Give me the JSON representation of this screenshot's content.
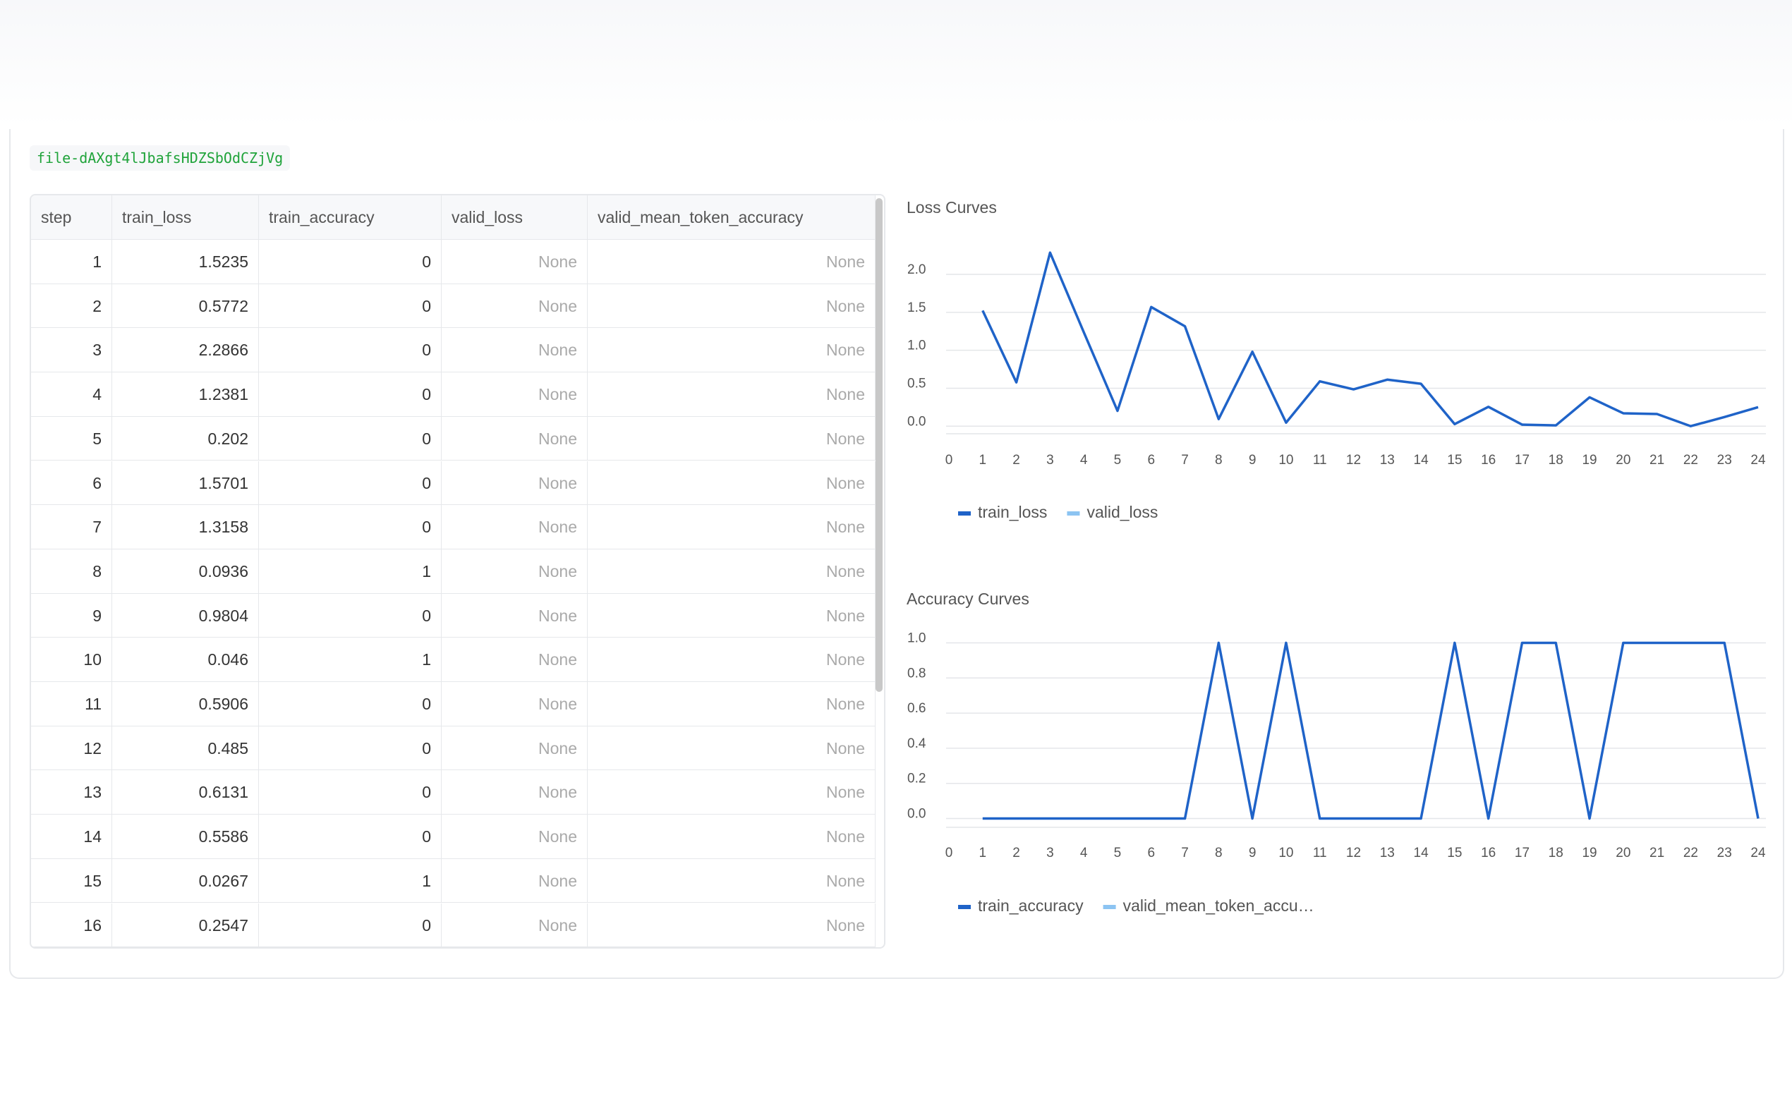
{
  "file_id": "file-dAXgt4lJbafsHDZSbOdCZjVg",
  "table": {
    "columns": [
      "step",
      "train_loss",
      "train_accuracy",
      "valid_loss",
      "valid_mean_token_accuracy"
    ],
    "rows": [
      [
        1,
        1.5235,
        0,
        "None",
        "None"
      ],
      [
        2,
        0.5772,
        0,
        "None",
        "None"
      ],
      [
        3,
        2.2866,
        0,
        "None",
        "None"
      ],
      [
        4,
        1.2381,
        0,
        "None",
        "None"
      ],
      [
        5,
        0.202,
        0,
        "None",
        "None"
      ],
      [
        6,
        1.5701,
        0,
        "None",
        "None"
      ],
      [
        7,
        1.3158,
        0,
        "None",
        "None"
      ],
      [
        8,
        0.0936,
        1,
        "None",
        "None"
      ],
      [
        9,
        0.9804,
        0,
        "None",
        "None"
      ],
      [
        10,
        0.046,
        1,
        "None",
        "None"
      ],
      [
        11,
        0.5906,
        0,
        "None",
        "None"
      ],
      [
        12,
        0.485,
        0,
        "None",
        "None"
      ],
      [
        13,
        0.6131,
        0,
        "None",
        "None"
      ],
      [
        14,
        0.5586,
        0,
        "None",
        "None"
      ],
      [
        15,
        0.0267,
        1,
        "None",
        "None"
      ],
      [
        16,
        0.2547,
        0,
        "None",
        "None"
      ]
    ]
  },
  "chart_data": [
    {
      "type": "line",
      "title": "Loss Curves",
      "x": [
        1,
        2,
        3,
        4,
        5,
        6,
        7,
        8,
        9,
        10,
        11,
        12,
        13,
        14,
        15,
        16,
        17,
        18,
        19,
        20,
        21,
        22,
        23,
        24
      ],
      "series": [
        {
          "name": "train_loss",
          "color": "#1f63c8",
          "values": [
            1.5235,
            0.5772,
            2.2866,
            1.2381,
            0.202,
            1.5701,
            1.3158,
            0.0936,
            0.9804,
            0.046,
            0.5906,
            0.485,
            0.6131,
            0.5586,
            0.0267,
            0.2547,
            0.02,
            0.01,
            0.38,
            0.17,
            0.16,
            0.0,
            0.12,
            0.25
          ]
        },
        {
          "name": "valid_loss",
          "color": "#8cc4f2",
          "values": [
            null,
            null,
            null,
            null,
            null,
            null,
            null,
            null,
            null,
            null,
            null,
            null,
            null,
            null,
            null,
            null,
            null,
            null,
            null,
            null,
            null,
            null,
            null,
            null
          ]
        }
      ],
      "xlim": [
        0,
        24
      ],
      "xticks": [
        0,
        1,
        2,
        3,
        4,
        5,
        6,
        7,
        8,
        9,
        10,
        11,
        12,
        13,
        14,
        15,
        16,
        17,
        18,
        19,
        20,
        21,
        22,
        23,
        24
      ],
      "ylim": [
        -0.1,
        2.4
      ],
      "yticks": [
        {
          "value": 0,
          "label": "0.0"
        },
        {
          "value": 0.5,
          "label": "0.5"
        },
        {
          "value": 1,
          "label": "1.0"
        },
        {
          "value": 1.5,
          "label": "1.5"
        },
        {
          "value": 2,
          "label": "2.0"
        }
      ],
      "grid": true
    },
    {
      "type": "line",
      "title": "Accuracy Curves",
      "x": [
        1,
        2,
        3,
        4,
        5,
        6,
        7,
        8,
        9,
        10,
        11,
        12,
        13,
        14,
        15,
        16,
        17,
        18,
        19,
        20,
        21,
        22,
        23,
        24
      ],
      "series": [
        {
          "name": "train_accuracy",
          "color": "#1f63c8",
          "values": [
            0,
            0,
            0,
            0,
            0,
            0,
            0,
            1,
            0,
            1,
            0,
            0,
            0,
            0,
            1,
            0,
            1,
            1,
            0,
            1,
            1,
            1,
            1,
            0
          ]
        },
        {
          "name": "valid_mean_token_accu…",
          "color": "#8cc4f2",
          "values": [
            null,
            null,
            null,
            null,
            null,
            null,
            null,
            null,
            null,
            null,
            null,
            null,
            null,
            null,
            null,
            null,
            null,
            null,
            null,
            null,
            null,
            null,
            null,
            null
          ]
        }
      ],
      "xlim": [
        0,
        24
      ],
      "xticks": [
        0,
        1,
        2,
        3,
        4,
        5,
        6,
        7,
        8,
        9,
        10,
        11,
        12,
        13,
        14,
        15,
        16,
        17,
        18,
        19,
        20,
        21,
        22,
        23,
        24
      ],
      "ylim": [
        -0.05,
        1.05
      ],
      "yticks": [
        {
          "value": 0,
          "label": "0.0"
        },
        {
          "value": 0.2,
          "label": "0.2"
        },
        {
          "value": 0.4,
          "label": "0.4"
        },
        {
          "value": 0.6,
          "label": "0.6"
        },
        {
          "value": 0.8,
          "label": "0.8"
        },
        {
          "value": 1,
          "label": "1.0"
        }
      ],
      "grid": true
    }
  ]
}
